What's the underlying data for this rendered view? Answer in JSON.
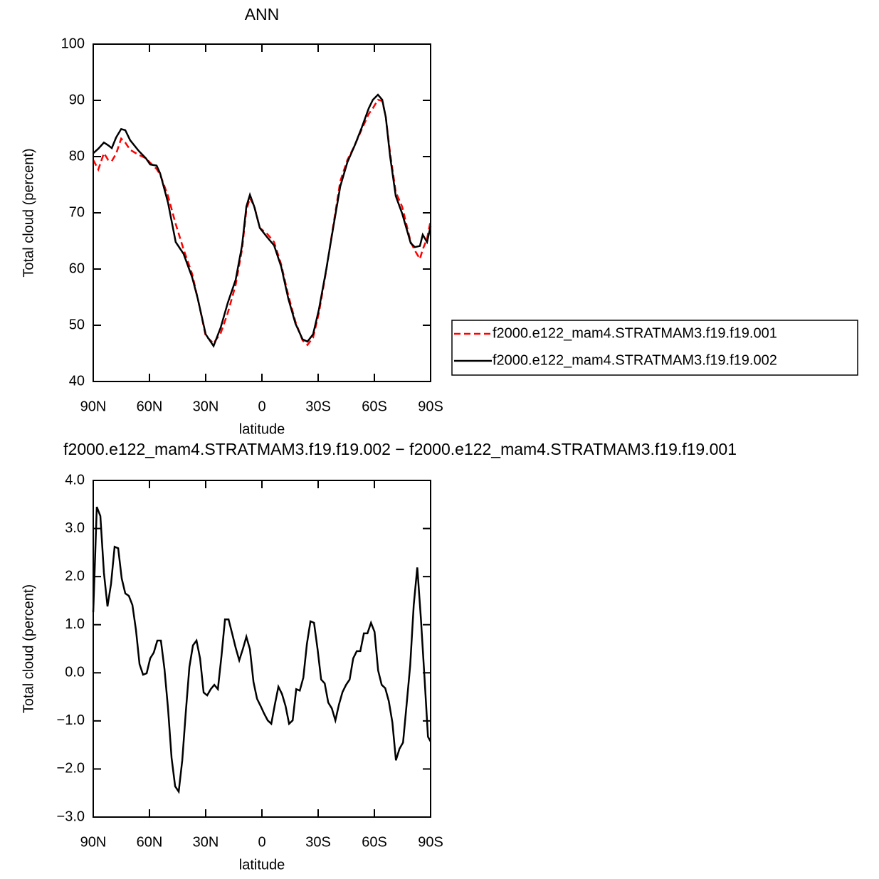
{
  "chart_data": [
    {
      "type": "line",
      "title": "ANN",
      "xlabel": "latitude",
      "ylabel": "Total cloud (percent)",
      "xlim": [
        90,
        -90
      ],
      "ylim": [
        40,
        100
      ],
      "xticks": [
        {
          "value": 90,
          "label": "90N"
        },
        {
          "value": 60,
          "label": "60N"
        },
        {
          "value": 30,
          "label": "30N"
        },
        0,
        {
          "value": -30,
          "label": "30S"
        },
        {
          "value": -60,
          "label": "60S"
        },
        {
          "value": -90,
          "label": "90S"
        }
      ],
      "yticks": [
        40,
        50,
        60,
        70,
        80,
        90,
        100
      ],
      "legend": "right",
      "x": [
        90,
        87.3,
        84.3,
        82,
        80.1,
        77.8,
        75.1,
        72.9,
        70.3,
        65.7,
        61.9,
        59.6,
        56.2,
        54.3,
        50.1,
        46,
        41.8,
        37.2,
        34.2,
        30,
        25.8,
        22,
        18.2,
        14,
        10.6,
        8.3,
        6.4,
        4.1,
        1.1,
        -2.7,
        -6.5,
        -10.3,
        -14.1,
        -17.9,
        -21.7,
        -24.3,
        -27.3,
        -30.4,
        -34.2,
        -38,
        -41.8,
        -45.6,
        -49.4,
        -53.2,
        -57,
        -59.2,
        -61.9,
        -64.2,
        -66.1,
        -68.4,
        -71.4,
        -74.8,
        -79.4,
        -81.6,
        -84.3,
        -85.8,
        -88.1,
        -90
      ],
      "series": [
        {
          "name": "f2000.e122_mam4.STRATMAM3.f19.f19.001",
          "color": "#ff0000",
          "linestyle": "dashed",
          "values": [
            79.4,
            77.7,
            80.6,
            79.4,
            79.2,
            80.5,
            83.2,
            82.5,
            81.2,
            80.3,
            79.7,
            78.9,
            77.8,
            76.8,
            73,
            68,
            63.5,
            59.1,
            54.7,
            48.1,
            46.8,
            48.6,
            52.2,
            57.2,
            63.5,
            70.5,
            72.6,
            71.2,
            67.3,
            66.3,
            64.8,
            60.8,
            55.3,
            50.6,
            47.3,
            46.5,
            47.8,
            52.2,
            59.5,
            67.6,
            75.6,
            79.4,
            81.9,
            84.8,
            87.6,
            88.6,
            90.1,
            89.9,
            87,
            80.6,
            73.7,
            71.1,
            64.8,
            63.3,
            61.8,
            63.5,
            65.4,
            68.6
          ]
        },
        {
          "name": "f2000.e122_mam4.STRATMAM3.f19.f19.002",
          "color": "#000000",
          "linestyle": "solid",
          "values": [
            80.6,
            81.4,
            82.5,
            82,
            81.5,
            83.4,
            84.9,
            84.7,
            82.9,
            81,
            79.7,
            78.6,
            78.4,
            77,
            71.8,
            64.8,
            62.7,
            58.5,
            54.7,
            48.4,
            46.3,
            49.6,
            54,
            58.1,
            64.2,
            71.1,
            73.2,
            71.1,
            67.3,
            65.7,
            64.2,
            60.4,
            54.7,
            50.3,
            47.5,
            47.1,
            48.4,
            52.8,
            59.7,
            67.3,
            74.7,
            79,
            81.9,
            85.1,
            88.6,
            90.1,
            91,
            90.1,
            87,
            80,
            73,
            69.9,
            64.6,
            63.9,
            64.1,
            66.1,
            64.8,
            67.6
          ]
        }
      ]
    },
    {
      "type": "line",
      "title": "f2000.e122_mam4.STRATMAM3.f19.f19.002 − f2000.e122_mam4.STRATMAM3.f19.f19.001",
      "xlabel": "latitude",
      "ylabel": "Total cloud (percent)",
      "xlim": [
        90,
        -90
      ],
      "ylim": [
        -3,
        4
      ],
      "xticks": [
        {
          "value": 90,
          "label": "90N"
        },
        {
          "value": 60,
          "label": "60N"
        },
        {
          "value": 30,
          "label": "30N"
        },
        0,
        {
          "value": -30,
          "label": "30S"
        },
        {
          "value": -60,
          "label": "60S"
        },
        {
          "value": -90,
          "label": "90S"
        }
      ],
      "yticks": [
        {
          "value": -3,
          "label": "−3.0"
        },
        {
          "value": -2,
          "label": "−2.0"
        },
        {
          "value": -1,
          "label": "−1.0"
        },
        {
          "value": 0,
          "label": "0.0"
        },
        {
          "value": 1,
          "label": "1.0"
        },
        {
          "value": 2,
          "label": "2.0"
        },
        {
          "value": 3,
          "label": "3.0"
        },
        {
          "value": 4,
          "label": "4.0"
        }
      ],
      "x": [
        90,
        88.1,
        86.2,
        84.3,
        82.4,
        80.5,
        78.6,
        76.7,
        74.8,
        72.9,
        71,
        69.1,
        67.2,
        65.3,
        63.4,
        61.5,
        59.6,
        57.7,
        55.8,
        53.9,
        52,
        50.1,
        48.2,
        46.3,
        44.4,
        42.5,
        40.6,
        38.7,
        36.8,
        34.9,
        33,
        31.1,
        29.2,
        27.3,
        25.4,
        23.5,
        21.6,
        19.7,
        17.8,
        15.9,
        14,
        12.1,
        10.2,
        8.3,
        6.4,
        4.5,
        2.6,
        0.7,
        -1.2,
        -3.1,
        -5,
        -6.9,
        -8.8,
        -10.7,
        -12.6,
        -14.5,
        -16.4,
        -18.3,
        -20.2,
        -22.1,
        -24,
        -25.9,
        -27.8,
        -29.7,
        -31.6,
        -33.5,
        -35.4,
        -37.3,
        -39.2,
        -41.1,
        -43,
        -44.9,
        -46.8,
        -48.7,
        -50.6,
        -52.5,
        -54.4,
        -56.3,
        -58.2,
        -60.1,
        -62,
        -63.9,
        -65.8,
        -67.7,
        -69.6,
        -71.5,
        -73.4,
        -75.3,
        -77.2,
        -79.1,
        -81,
        -82.9,
        -84.8,
        -86.7,
        -88.6,
        -90
      ],
      "series": [
        {
          "color": "#000000",
          "linestyle": "solid",
          "values": [
            1.26,
            3.45,
            3.26,
            2.08,
            1.38,
            1.85,
            2.62,
            2.59,
            1.96,
            1.65,
            1.6,
            1.41,
            0.89,
            0.18,
            -0.04,
            -0.01,
            0.3,
            0.42,
            0.67,
            0.67,
            0.08,
            -0.74,
            -1.77,
            -2.36,
            -2.47,
            -1.82,
            -0.81,
            0.12,
            0.57,
            0.67,
            0.3,
            -0.41,
            -0.47,
            -0.34,
            -0.25,
            -0.34,
            0.34,
            1.11,
            1.11,
            0.82,
            0.52,
            0.26,
            0.49,
            0.75,
            0.49,
            -0.19,
            -0.54,
            -0.69,
            -0.85,
            -0.99,
            -1.06,
            -0.66,
            -0.29,
            -0.44,
            -0.69,
            -1.06,
            -0.99,
            -0.34,
            -0.37,
            -0.1,
            0.6,
            1.07,
            1.04,
            0.49,
            -0.14,
            -0.22,
            -0.62,
            -0.74,
            -0.99,
            -0.66,
            -0.4,
            -0.25,
            -0.14,
            0.3,
            0.45,
            0.45,
            0.82,
            0.82,
            1.04,
            0.85,
            0.05,
            -0.25,
            -0.32,
            -0.59,
            -1.03,
            -1.82,
            -1.58,
            -1.45,
            -0.66,
            0.15,
            1.41,
            2.19,
            1.14,
            -0.07,
            -1.33,
            -1.43
          ]
        }
      ]
    }
  ]
}
